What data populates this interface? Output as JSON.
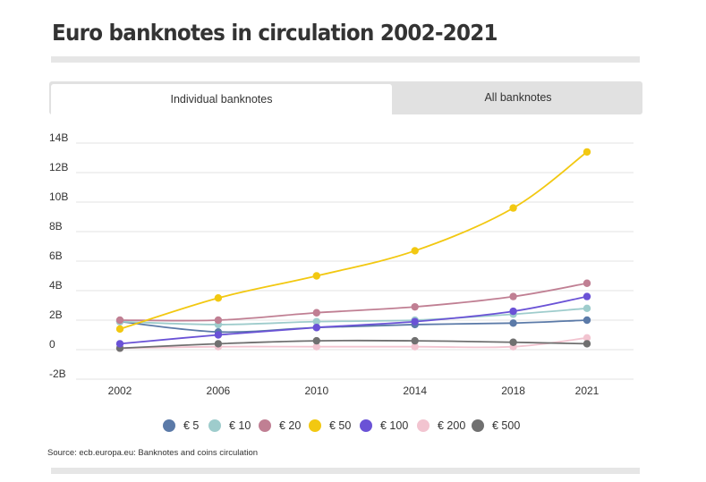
{
  "title": "Euro banknotes in circulation 2002-2021",
  "tabs": [
    {
      "label": "Individual banknotes",
      "active": true
    },
    {
      "label": "All banknotes",
      "active": false
    }
  ],
  "source": "Source: ecb.europa.eu: Banknotes and coins circulation",
  "chart_data": {
    "type": "line",
    "title": "Euro banknotes in circulation 2002-2021",
    "xlabel": "",
    "ylabel": "",
    "x": [
      2002,
      2006,
      2010,
      2014,
      2018,
      2021
    ],
    "x_tick_labels": [
      "2002",
      "2006",
      "2010",
      "2014",
      "2018",
      "2021"
    ],
    "ylim": [
      -2,
      14
    ],
    "y_ticks": [
      -2,
      0,
      2,
      4,
      6,
      8,
      10,
      12,
      14
    ],
    "y_tick_labels": [
      "-2B",
      "0",
      "2B",
      "4B",
      "6B",
      "8B",
      "10B",
      "12B",
      "14B"
    ],
    "grid": true,
    "legend_position": "bottom",
    "series": [
      {
        "name": "€ 5",
        "color": "#5b7aa8",
        "values": [
          1.9,
          1.2,
          1.5,
          1.7,
          1.8,
          2.0
        ]
      },
      {
        "name": "€ 10",
        "color": "#9ecccc",
        "values": [
          1.9,
          1.7,
          1.9,
          2.0,
          2.4,
          2.8
        ]
      },
      {
        "name": "€ 20",
        "color": "#c07f93",
        "values": [
          2.0,
          2.0,
          2.5,
          2.9,
          3.6,
          4.5
        ]
      },
      {
        "name": "€ 50",
        "color": "#f2c811",
        "values": [
          1.4,
          3.5,
          5.0,
          6.7,
          9.6,
          13.4
        ]
      },
      {
        "name": "€ 100",
        "color": "#6a52d6",
        "values": [
          0.4,
          1.0,
          1.5,
          1.9,
          2.6,
          3.6
        ]
      },
      {
        "name": "€ 200",
        "color": "#f2c4d0",
        "values": [
          0.1,
          0.2,
          0.2,
          0.2,
          0.2,
          0.8
        ]
      },
      {
        "name": "€ 500",
        "color": "#707070",
        "values": [
          0.1,
          0.4,
          0.6,
          0.6,
          0.5,
          0.4
        ]
      }
    ]
  }
}
